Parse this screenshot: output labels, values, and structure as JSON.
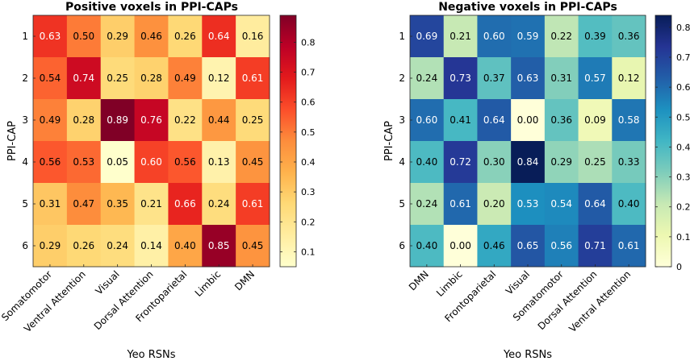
{
  "chart_data": [
    {
      "type": "heatmap",
      "title": "Positive voxels in PPI-CAPs",
      "xlabel": "Yeo RSNs",
      "ylabel": "PPI-CAP",
      "x_categories": [
        "Somatomotor",
        "Ventral Attention",
        "Visual",
        "Dorsal Attention",
        "Frontoparietal",
        "Limbic",
        "DMN"
      ],
      "y_categories": [
        "1",
        "2",
        "3",
        "4",
        "5",
        "6"
      ],
      "values": [
        [
          0.63,
          0.5,
          0.29,
          0.46,
          0.26,
          0.64,
          0.16
        ],
        [
          0.54,
          0.74,
          0.25,
          0.28,
          0.49,
          0.12,
          0.61
        ],
        [
          0.49,
          0.28,
          0.89,
          0.76,
          0.22,
          0.44,
          0.25
        ],
        [
          0.56,
          0.53,
          0.05,
          0.6,
          0.56,
          0.13,
          0.45
        ],
        [
          0.31,
          0.47,
          0.35,
          0.21,
          0.66,
          0.24,
          0.61
        ],
        [
          0.29,
          0.26,
          0.24,
          0.14,
          0.4,
          0.85,
          0.45
        ]
      ],
      "value_labels": [
        [
          "0.63",
          "0.50",
          "0.29",
          "0.46",
          "0.26",
          "0.64",
          "0.16"
        ],
        [
          "0.54",
          "0.74",
          "0.25",
          "0.28",
          "0.49",
          "0.12",
          "0.61"
        ],
        [
          "0.49",
          "0.28",
          "0.89",
          "0.76",
          "0.22",
          "0.44",
          "0.25"
        ],
        [
          "0.56",
          "0.53",
          "0.05",
          "0.60",
          "0.56",
          "0.13",
          "0.45"
        ],
        [
          "0.31",
          "0.47",
          "0.35",
          "0.21",
          "0.66",
          "0.24",
          "0.61"
        ],
        [
          "0.29",
          "0.26",
          "0.24",
          "0.14",
          "0.40",
          "0.85",
          "0.45"
        ]
      ],
      "colormap": "YlOrRd",
      "clim": [
        0.05,
        0.89
      ],
      "colorbar_ticks": [
        "0.1",
        "0.2",
        "0.3",
        "0.4",
        "0.5",
        "0.6",
        "0.7",
        "0.8"
      ]
    },
    {
      "type": "heatmap",
      "title": "Negative voxels in PPI-CAPs",
      "xlabel": "Yeo RSNs",
      "ylabel": "PPI-CAP",
      "x_categories": [
        "DMN",
        "Limbic",
        "Frontoparietal",
        "Visual",
        "Somatomotor",
        "Dorsal Attention",
        "Ventral Attention"
      ],
      "y_categories": [
        "1",
        "2",
        "3",
        "4",
        "5",
        "6"
      ],
      "values": [
        [
          0.69,
          0.21,
          0.6,
          0.59,
          0.22,
          0.39,
          0.36
        ],
        [
          0.24,
          0.73,
          0.37,
          0.63,
          0.31,
          0.57,
          0.12
        ],
        [
          0.6,
          0.41,
          0.64,
          0.0,
          0.36,
          0.09,
          0.58
        ],
        [
          0.4,
          0.72,
          0.3,
          0.84,
          0.29,
          0.25,
          0.33
        ],
        [
          0.24,
          0.61,
          0.2,
          0.53,
          0.54,
          0.64,
          0.4
        ],
        [
          0.4,
          0.0,
          0.46,
          0.65,
          0.56,
          0.71,
          0.61
        ]
      ],
      "value_labels": [
        [
          "0.69",
          "0.21",
          "0.60",
          "0.59",
          "0.22",
          "0.39",
          "0.36"
        ],
        [
          "0.24",
          "0.73",
          "0.37",
          "0.63",
          "0.31",
          "0.57",
          "0.12"
        ],
        [
          "0.60",
          "0.41",
          "0.64",
          "0.00",
          "0.36",
          "0.09",
          "0.58"
        ],
        [
          "0.40",
          "0.72",
          "0.30",
          "0.84",
          "0.29",
          "0.25",
          "0.33"
        ],
        [
          "0.24",
          "0.61",
          "0.20",
          "0.53",
          "0.54",
          "0.64",
          "0.40"
        ],
        [
          "0.40",
          "0.00",
          "0.46",
          "0.65",
          "0.56",
          "0.71",
          "0.61"
        ]
      ],
      "colormap": "YlGnBu",
      "clim": [
        0,
        0.84
      ],
      "colorbar_ticks": [
        "0",
        "0.1",
        "0.2",
        "0.3",
        "0.4",
        "0.5",
        "0.6",
        "0.7",
        "0.8"
      ]
    }
  ]
}
